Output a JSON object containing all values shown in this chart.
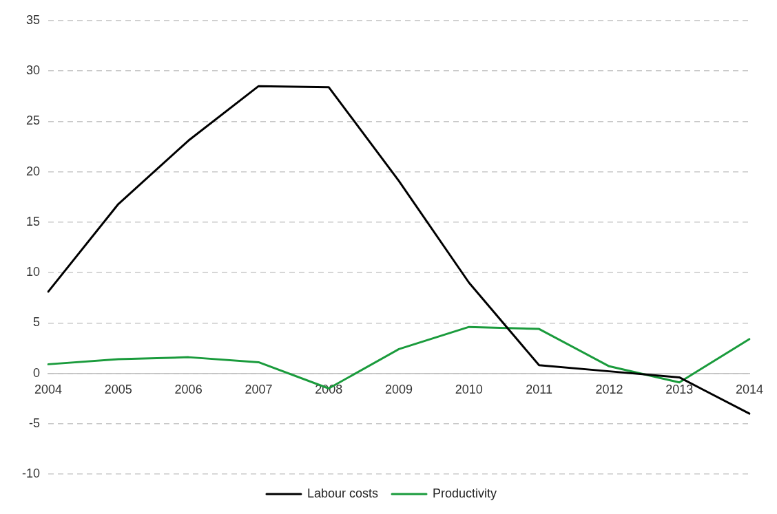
{
  "chart_data": {
    "type": "line",
    "categories": [
      "2004",
      "2005",
      "2006",
      "2007",
      "2008",
      "2009",
      "2010",
      "2011",
      "2012",
      "2013",
      "2014"
    ],
    "series": [
      {
        "name": "Labour costs",
        "color": "#000000",
        "values": [
          8.1,
          16.8,
          23.1,
          28.5,
          28.4,
          19.1,
          9.0,
          0.8,
          0.2,
          -0.4,
          -4.0
        ]
      },
      {
        "name": "Productivity",
        "color": "#1a9b3c",
        "values": [
          0.9,
          1.4,
          1.6,
          1.1,
          -1.5,
          2.4,
          4.6,
          4.4,
          0.7,
          -0.9,
          3.4
        ]
      }
    ],
    "ylim": [
      -10,
      35
    ],
    "yticks": [
      -10,
      -5,
      0,
      5,
      10,
      15,
      20,
      25,
      30,
      35
    ],
    "grid": "y",
    "legend": "bottom",
    "marker": "none",
    "line_style": "solid"
  }
}
